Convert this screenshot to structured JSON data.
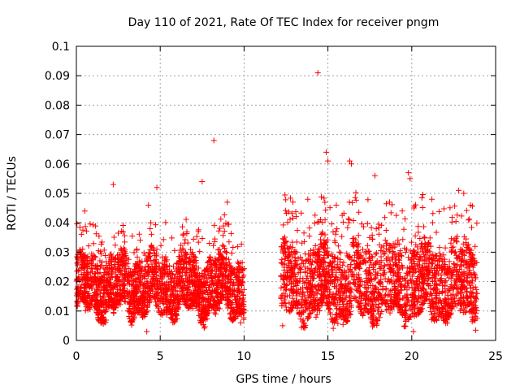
{
  "chart_data": {
    "type": "scatter",
    "title": "Day 110 of 2021, Rate Of TEC Index for receiver pngm",
    "xlabel": "GPS time / hours",
    "ylabel": "ROTI / TECUs",
    "xlim": [
      0,
      25
    ],
    "ylim": [
      0,
      0.1
    ],
    "xticks": [
      0,
      5,
      10,
      15,
      20,
      25
    ],
    "xtick_labels": [
      "0",
      "5",
      "10",
      "15",
      "20",
      "25"
    ],
    "yticks": [
      0,
      0.01,
      0.02,
      0.03,
      0.04,
      0.05,
      0.06,
      0.07,
      0.08,
      0.09,
      0.1
    ],
    "ytick_labels": [
      "0",
      "0.01",
      "0.02",
      "0.03",
      "0.04",
      "0.05",
      "0.06",
      "0.07",
      "0.08",
      "0.09",
      "0.1"
    ],
    "grid": true,
    "marker": "+",
    "color": "#ff0000",
    "series": [
      {
        "name": "ROTI",
        "segments": [
          {
            "x_start": 0.0,
            "x_end": 10.0,
            "typical_min": 0.006,
            "typical_max": 0.03
          },
          {
            "x_start": 12.2,
            "x_end": 23.9,
            "typical_min": 0.005,
            "typical_max": 0.035
          }
        ],
        "notable_points": [
          {
            "x": 14.4,
            "y": 0.091
          },
          {
            "x": 8.2,
            "y": 0.068
          },
          {
            "x": 7.5,
            "y": 0.054
          },
          {
            "x": 2.2,
            "y": 0.053
          },
          {
            "x": 4.8,
            "y": 0.052
          },
          {
            "x": 14.9,
            "y": 0.064
          },
          {
            "x": 15.0,
            "y": 0.061
          },
          {
            "x": 16.3,
            "y": 0.061
          },
          {
            "x": 16.4,
            "y": 0.06
          },
          {
            "x": 17.8,
            "y": 0.056
          },
          {
            "x": 19.8,
            "y": 0.057
          },
          {
            "x": 19.9,
            "y": 0.055
          },
          {
            "x": 21.2,
            "y": 0.048
          },
          {
            "x": 22.8,
            "y": 0.051
          },
          {
            "x": 23.1,
            "y": 0.05
          },
          {
            "x": 13.8,
            "y": 0.048
          },
          {
            "x": 15.5,
            "y": 0.046
          },
          {
            "x": 0.5,
            "y": 0.044
          },
          {
            "x": 4.3,
            "y": 0.046
          },
          {
            "x": 9.0,
            "y": 0.047
          },
          {
            "x": 9.8,
            "y": 0.006
          },
          {
            "x": 12.3,
            "y": 0.005
          },
          {
            "x": 4.2,
            "y": 0.003
          },
          {
            "x": 20.1,
            "y": 0.003
          }
        ]
      }
    ]
  }
}
